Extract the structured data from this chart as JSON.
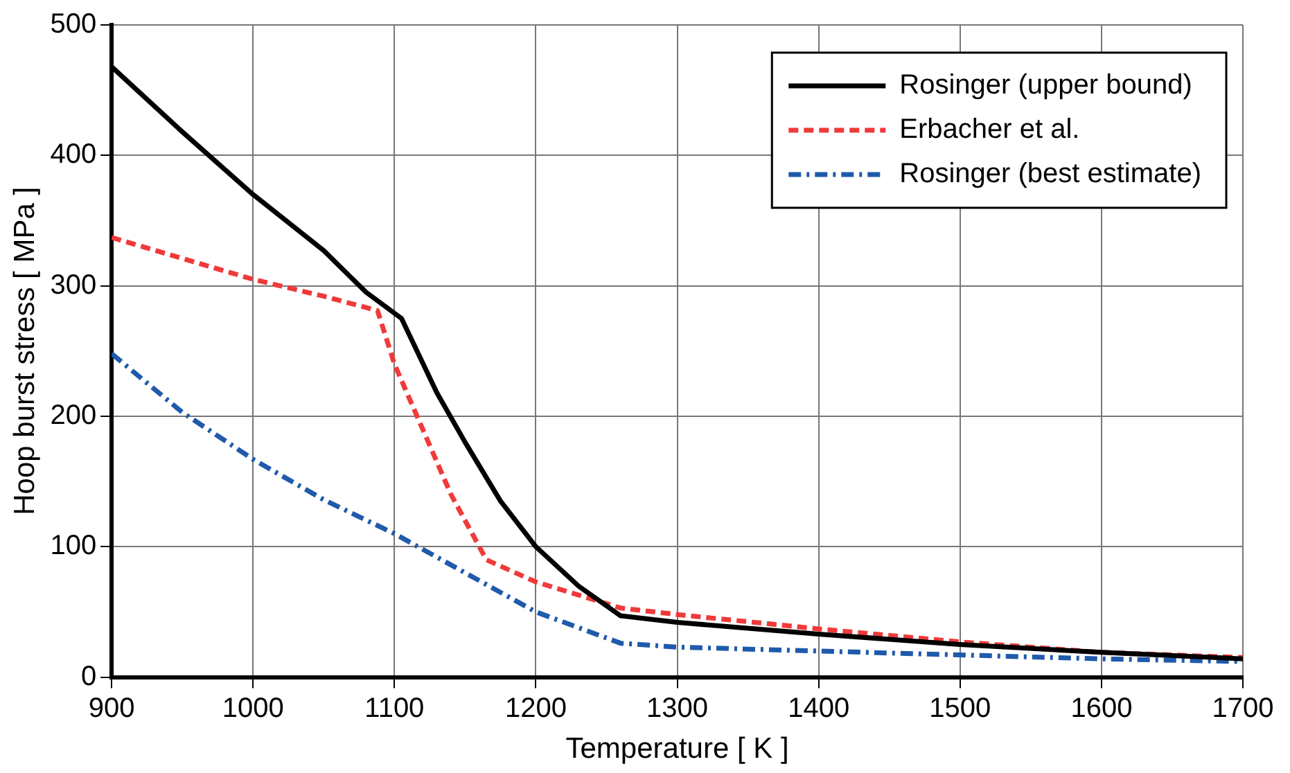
{
  "chart_data": {
    "type": "line",
    "xlabel": "Temperature [ K ]",
    "ylabel": "Hoop burst stress [ MPa ]",
    "xlim": [
      900,
      1700
    ],
    "xticks": [
      900,
      1000,
      1100,
      1200,
      1300,
      1400,
      1500,
      1600,
      1700
    ],
    "ylim": [
      0,
      500
    ],
    "yticks": [
      0,
      100,
      200,
      300,
      400,
      500
    ],
    "grid": true,
    "legend": "top right",
    "marker": "none",
    "series": [
      {
        "name": "Rosinger (upper bound)",
        "color": "#000000",
        "line_style": "solid",
        "x": [
          900,
          950,
          1000,
          1050,
          1080,
          1105,
          1130,
          1150,
          1175,
          1200,
          1230,
          1260,
          1300,
          1400,
          1500,
          1600,
          1700
        ],
        "values": [
          468,
          418,
          370,
          327,
          295,
          275,
          218,
          180,
          135,
          100,
          70,
          47,
          42,
          33,
          25,
          19,
          14
        ]
      },
      {
        "name": "Erbacher et al.",
        "color": "#f03a3a",
        "line_style": "dashed",
        "x": [
          900,
          1000,
          1050,
          1088,
          1100,
          1120,
          1140,
          1165,
          1200,
          1260,
          1300,
          1400,
          1500,
          1600,
          1700
        ],
        "values": [
          337,
          305,
          292,
          281,
          240,
          190,
          140,
          90,
          73,
          53,
          48,
          37,
          27,
          19,
          15
        ]
      },
      {
        "name": "Rosinger (best estimate)",
        "color": "#1f5aab",
        "line_style": "dashdot",
        "x": [
          900,
          950,
          1000,
          1050,
          1100,
          1150,
          1200,
          1260,
          1300,
          1400,
          1500,
          1600,
          1700
        ],
        "values": [
          248,
          203,
          167,
          136,
          110,
          80,
          50,
          26,
          23,
          20,
          17,
          14,
          12
        ]
      }
    ]
  }
}
